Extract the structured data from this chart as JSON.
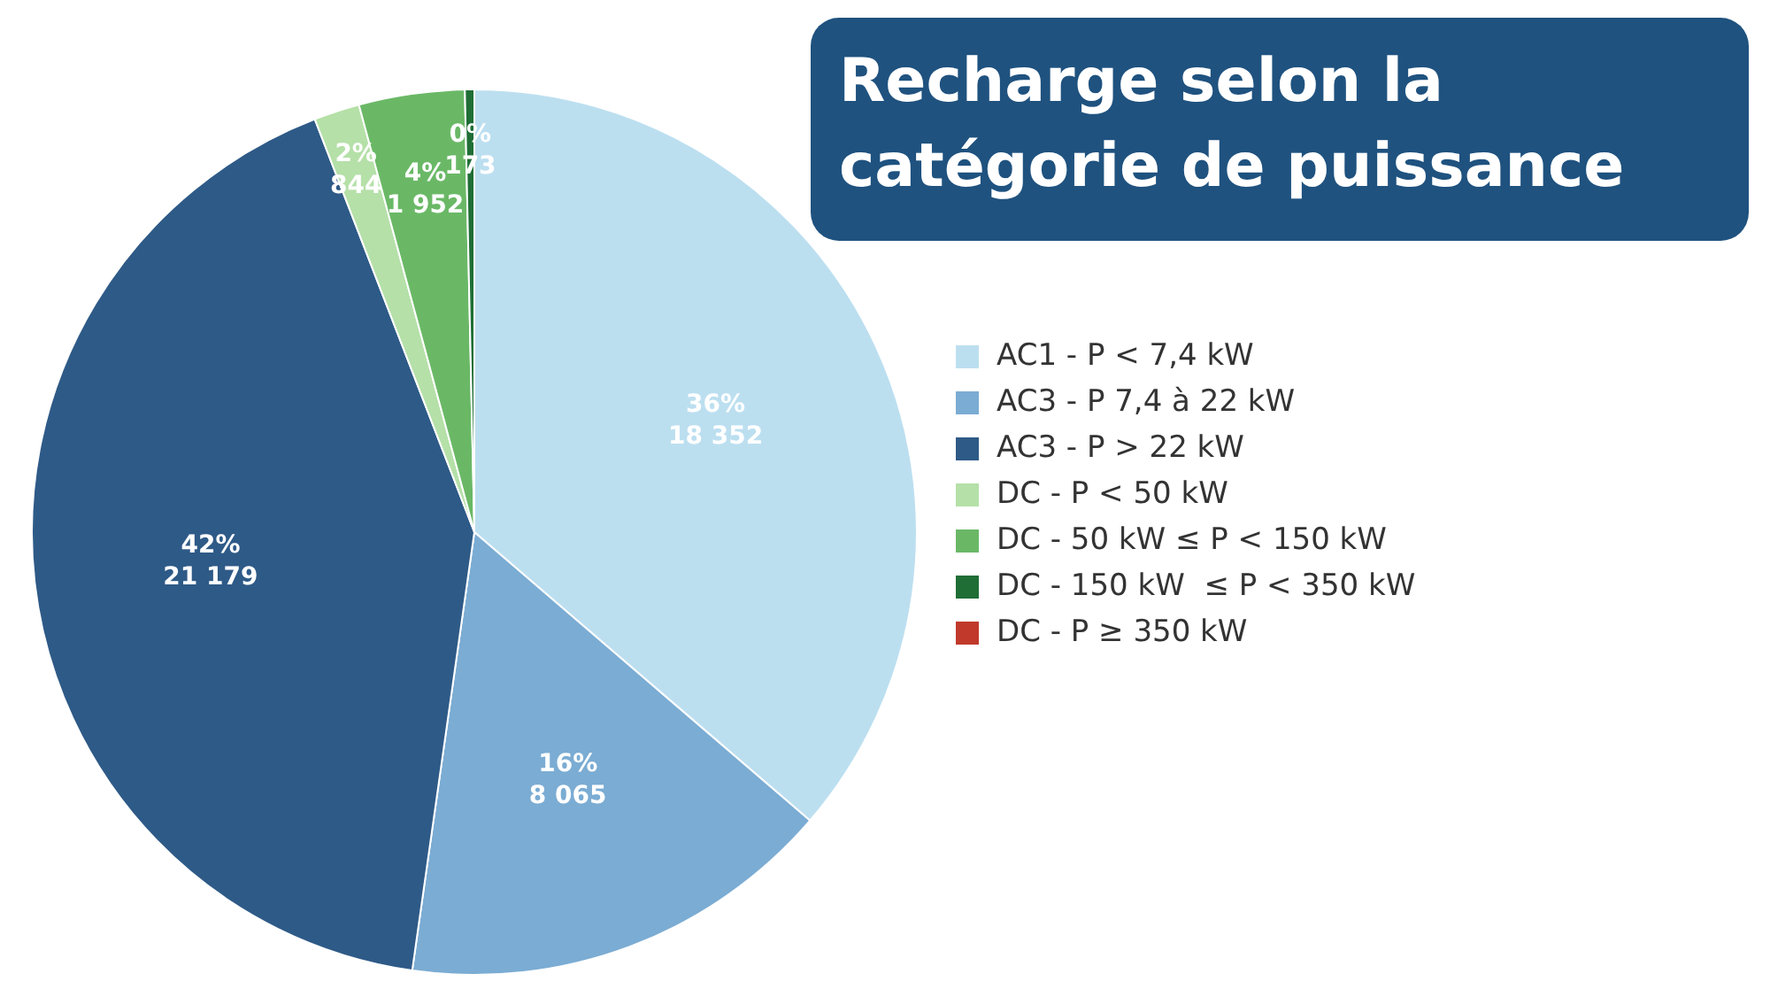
{
  "chart_data": {
    "type": "pie",
    "title": "Recharge selon la catégorie de puissance",
    "categories": [
      "AC1 - P < 7,4 kW",
      "AC3 - P 7,4 à 22 kW",
      "AC3 - P > 22 kW",
      "DC - P < 50 kW",
      "DC - 50 kW ≤ P < 150 kW",
      "DC - 150 kW  ≤ P < 350 kW",
      "DC - P ≥ 350 kW"
    ],
    "values": [
      18352,
      8065,
      21179,
      844,
      1952,
      173,
      0
    ],
    "colors": [
      "#bcdff0",
      "#7bacd3",
      "#2e5a87",
      "#b5e0a8",
      "#6ab866",
      "#1f6e35",
      "#c0392b"
    ],
    "value_labels": [
      "36%\n18 352",
      "16%\n8 065",
      "42%\n21 179",
      "2%\n844",
      "4%\n1 952",
      "0%\n173",
      null
    ],
    "legend": "right"
  }
}
